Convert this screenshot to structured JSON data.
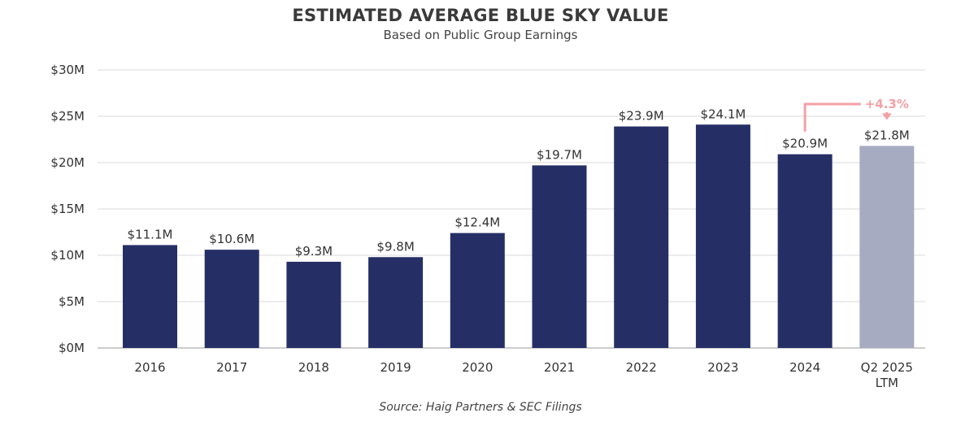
{
  "chart_data": {
    "type": "bar",
    "title": "ESTIMATED AVERAGE BLUE SKY VALUE",
    "subtitle": "Based on Public Group Earnings",
    "source": "Source: Haig Partners & SEC Filings",
    "categories": [
      "2016",
      "2017",
      "2018",
      "2019",
      "2020",
      "2021",
      "2022",
      "2023",
      "2024",
      "Q2 2025|LTM"
    ],
    "values": [
      11.1,
      10.6,
      9.3,
      9.8,
      12.4,
      19.7,
      23.9,
      24.1,
      20.9,
      21.8
    ],
    "data_labels": [
      "$11.1M",
      "$10.6M",
      "$9.3M",
      "$9.8M",
      "$12.4M",
      "$19.7M",
      "$23.9M",
      "$24.1M",
      "$20.9M",
      "$21.8M"
    ],
    "ylim": [
      0,
      30
    ],
    "yticks": [
      0,
      5,
      10,
      15,
      20,
      25,
      30
    ],
    "ytick_labels": [
      "$0M",
      "$5M",
      "$10M",
      "$15M",
      "$20M",
      "$25M",
      "$30M"
    ],
    "grid": true,
    "annotation": {
      "text": "+4.3%",
      "from_index": 8,
      "to_index": 9
    },
    "colors": {
      "bar": "#252f66",
      "bar_highlight": "#a7abc2",
      "annotation": "#f4a0a6",
      "grid": "#d9d9d9",
      "axis": "#999999"
    }
  }
}
